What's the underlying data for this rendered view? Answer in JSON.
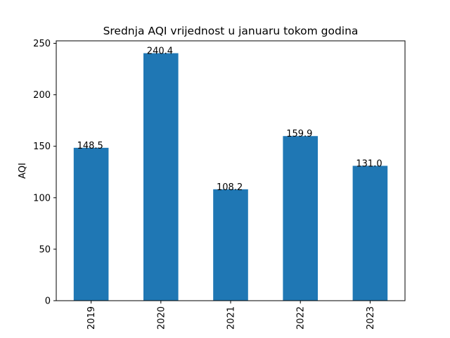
{
  "chart_data": {
    "type": "bar",
    "title": "Srednja AQI vrijednost u januaru tokom godina",
    "xlabel": "",
    "ylabel": "AQI",
    "categories": [
      "2019",
      "2020",
      "2021",
      "2022",
      "2023"
    ],
    "values": [
      148.5,
      240.4,
      108.2,
      159.9,
      131.0
    ],
    "value_labels": [
      "148.5",
      "240.4",
      "108.2",
      "159.9",
      "131.0"
    ],
    "ylim": [
      0,
      252.4
    ],
    "yticks": [
      0,
      50,
      100,
      150,
      200,
      250
    ],
    "ytick_labels": [
      "0",
      "50",
      "100",
      "150",
      "200",
      "250"
    ],
    "bar_color": "#1f77b4",
    "grid": false,
    "legend": "none"
  }
}
